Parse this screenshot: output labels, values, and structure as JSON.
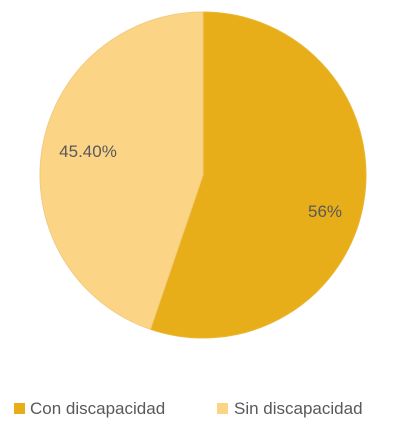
{
  "chart_data": {
    "type": "pie",
    "title": "",
    "slices": [
      {
        "label": "Con discapacidad",
        "value": 56,
        "display": "56%",
        "color": "#E8AE1A",
        "edge": "#E8B734"
      },
      {
        "label": "Sin discapacidad",
        "value": 45.4,
        "display": "45.40%",
        "color": "#FCD486",
        "edge": "#F1CB7F"
      }
    ],
    "legend": {
      "position": "bottom"
    }
  }
}
